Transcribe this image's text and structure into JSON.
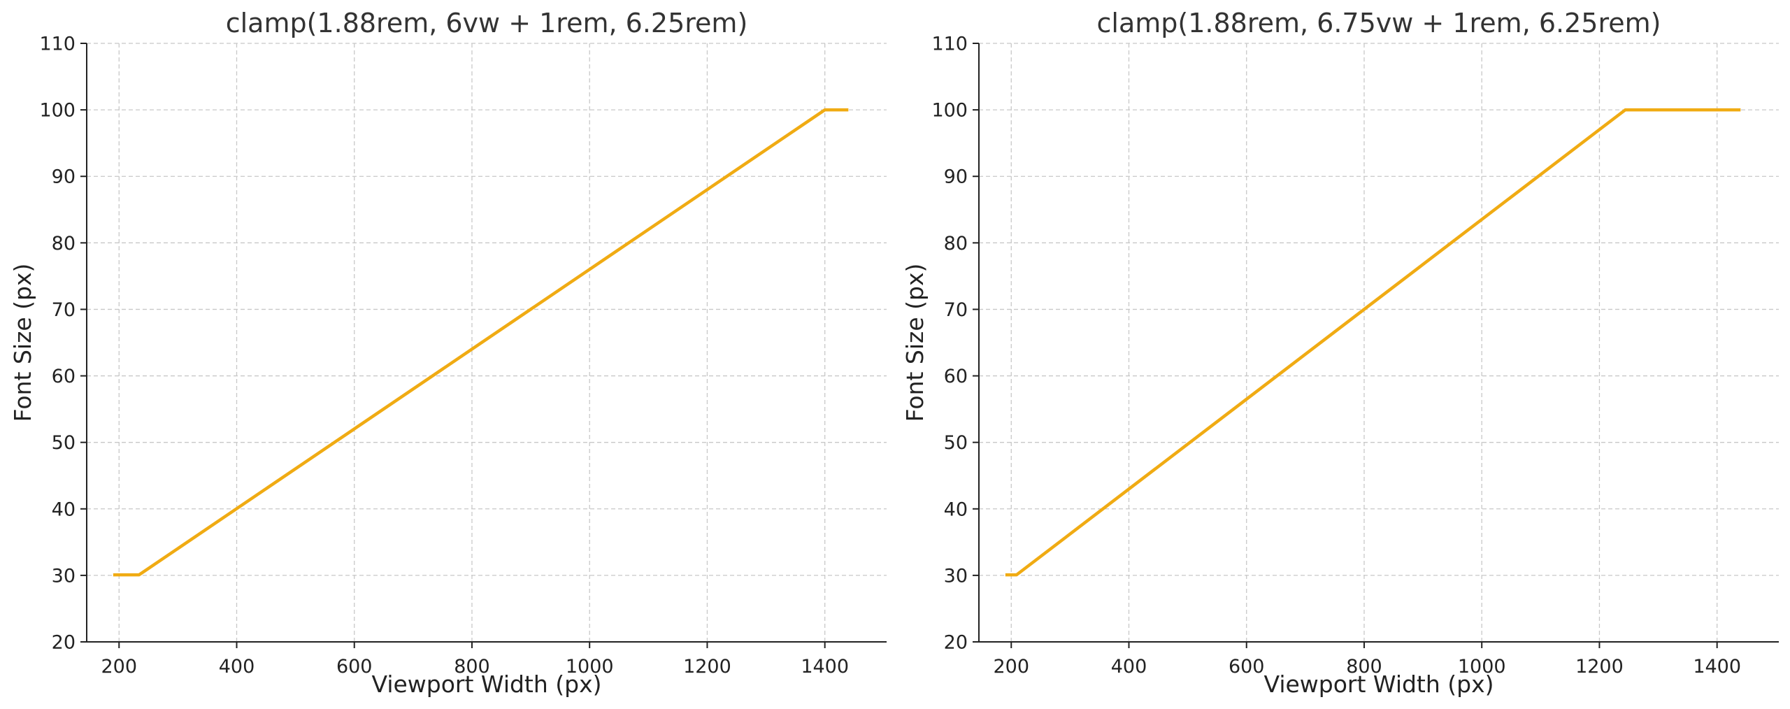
{
  "chart_data": [
    {
      "type": "line",
      "title": "clamp(1.88rem, 6vw + 1rem, 6.25rem)",
      "xlabel": "Viewport Width (px)",
      "ylabel": "Font Size (px)",
      "xlim": [
        145,
        1505
      ],
      "ylim": [
        20,
        110
      ],
      "xticks": [
        200,
        400,
        600,
        800,
        1000,
        1200,
        1400
      ],
      "yticks": [
        20,
        30,
        40,
        50,
        60,
        70,
        80,
        90,
        100,
        110
      ],
      "grid": true,
      "series": [
        {
          "color": "#f0ab13",
          "x": [
            190,
            234,
            1400,
            1440
          ],
          "y": [
            30.08,
            30.08,
            100,
            100
          ]
        }
      ]
    },
    {
      "type": "line",
      "title": "clamp(1.88rem, 6.75vw + 1rem, 6.25rem)",
      "xlabel": "Viewport Width (px)",
      "ylabel": "Font Size (px)",
      "xlim": [
        145,
        1505
      ],
      "ylim": [
        20,
        110
      ],
      "xticks": [
        200,
        400,
        600,
        800,
        1000,
        1200,
        1400
      ],
      "yticks": [
        20,
        30,
        40,
        50,
        60,
        70,
        80,
        90,
        100,
        110
      ],
      "grid": true,
      "series": [
        {
          "color": "#f0ab13",
          "x": [
            190,
            209,
            1244,
            1440
          ],
          "y": [
            30.08,
            30.08,
            100,
            100
          ]
        }
      ]
    }
  ]
}
